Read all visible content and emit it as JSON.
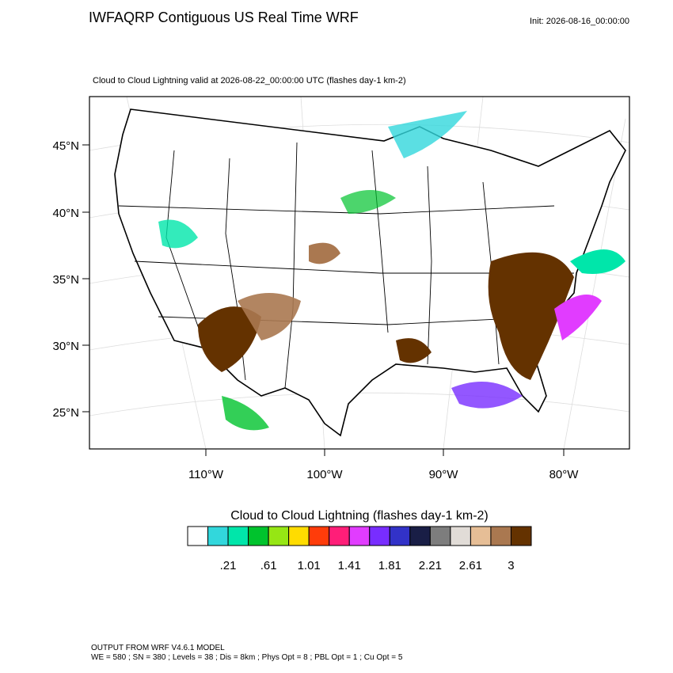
{
  "header": {
    "title": "IWFAQRP Contiguous US Real Time WRF",
    "init": "Init: 2026-08-16_00:00:00",
    "subtitle": "Cloud to Cloud Lightning valid at 2026-08-22_00:00:00 UTC   (flashes day-1 km-2)"
  },
  "map": {
    "lat_labels": [
      "45°N",
      "40°N",
      "35°N",
      "30°N",
      "25°N"
    ],
    "lon_labels": [
      "110°W",
      "100°W",
      "90°W",
      "80°W"
    ]
  },
  "colorbar": {
    "title": "Cloud to Cloud Lightning  (flashes day-1 km-2)",
    "colors": [
      "#ffffff",
      "#32d7dc",
      "#00e6aa",
      "#00c32d",
      "#96e614",
      "#ffdc00",
      "#ff3c0a",
      "#ff1e78",
      "#e13cff",
      "#782dff",
      "#3232c8",
      "#191e46",
      "#7d7d7d",
      "#e1dcd7",
      "#e6be96",
      "#aa7850",
      "#643200"
    ],
    "labels": [
      ".21",
      ".61",
      "1.01",
      "1.41",
      "1.81",
      "2.21",
      "2.61",
      "3"
    ]
  },
  "footer": {
    "line1": "OUTPUT FROM WRF V4.6.1 MODEL",
    "line2": "WE = 580 ; SN = 380 ; Levels = 38 ; Dis = 8km ; Phys Opt = 8 ; PBL Opt = 1 ; Cu Opt = 5"
  }
}
